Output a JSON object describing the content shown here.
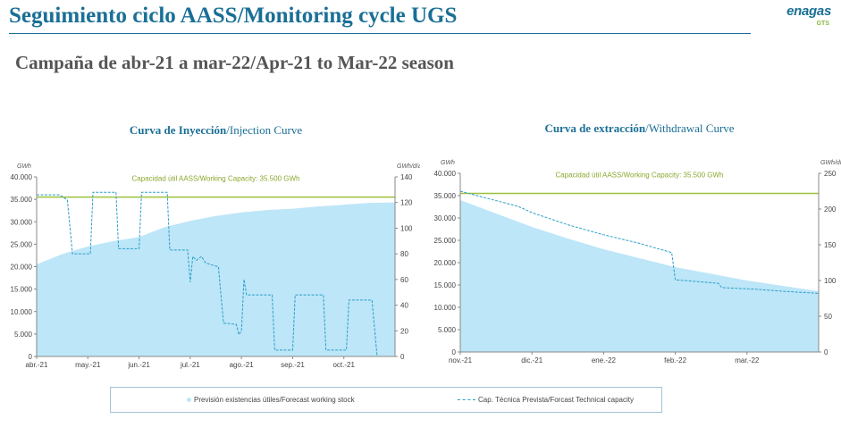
{
  "header": {
    "title": "Seguimiento ciclo AASS/Monitoring cycle UGS",
    "subtitle": "Campaña de abr-21 a mar-22/Apr-21 to Mar-22 season",
    "logo_text": "enagas",
    "logo_sub": "GTS"
  },
  "colors": {
    "title": "#1a6f96",
    "fill": "#bde6f8",
    "line": "#2a9fc9",
    "capacity": "#9dc13b"
  },
  "legend": {
    "stock": "Previsión existencias útiles/Forecast working stock",
    "capacity": "Cap. Técnica Prevista/Forcast Technical capacity"
  },
  "chart_data": [
    {
      "type": "area",
      "title_bold": "Curva de Inyección",
      "title_rest": "/Injection Curve",
      "ylabel_left": "GWh",
      "ylabel_right": "GWh/día",
      "working_capacity_label": "Capacidad útil AASS/Working Capacity: 35.500 GWh",
      "working_capacity": 35500,
      "ylim_left": [
        0,
        40000
      ],
      "ylim_right": [
        0,
        140
      ],
      "yticks_left": [
        "0",
        "5.000",
        "10.000",
        "15.000",
        "20.000",
        "25.000",
        "30.000",
        "35.000",
        "40.000"
      ],
      "yticks_right": [
        "0",
        "20",
        "40",
        "60",
        "80",
        "100",
        "120",
        "140"
      ],
      "xlim": [
        0,
        7
      ],
      "xticks": [
        "abr.-21",
        "may.-21",
        "jun.-21",
        "jul.-21",
        "ago.-21",
        "sep.-21",
        "oct.-21"
      ],
      "series": [
        {
          "name": "Previsión existencias útiles/Forecast working stock",
          "axis": "left",
          "kind": "area",
          "points": [
            [
              0,
              20500
            ],
            [
              0.5,
              22800
            ],
            [
              1,
              24500
            ],
            [
              1.5,
              25700
            ],
            [
              2,
              26600
            ],
            [
              2.5,
              28800
            ],
            [
              3,
              30200
            ],
            [
              3.5,
              31300
            ],
            [
              4,
              32100
            ],
            [
              4.5,
              32600
            ],
            [
              5,
              32900
            ],
            [
              5.5,
              33400
            ],
            [
              6,
              33800
            ],
            [
              6.5,
              34200
            ],
            [
              7,
              34300
            ]
          ]
        },
        {
          "name": "Cap. Técnica Prevista/Forcast Technical capacity",
          "axis": "right",
          "kind": "line",
          "points": [
            [
              0,
              126
            ],
            [
              0.45,
              126
            ],
            [
              0.6,
              122
            ],
            [
              0.7,
              80
            ],
            [
              1.05,
              80
            ],
            [
              1.1,
              128
            ],
            [
              1.55,
              128
            ],
            [
              1.6,
              84
            ],
            [
              2.0,
              84
            ],
            [
              2.05,
              128
            ],
            [
              2.55,
              128
            ],
            [
              2.6,
              83
            ],
            [
              2.95,
              83
            ],
            [
              3.0,
              58
            ],
            [
              3.05,
              78
            ],
            [
              3.12,
              75
            ],
            [
              3.22,
              78
            ],
            [
              3.3,
              73
            ],
            [
              3.45,
              71
            ],
            [
              3.55,
              70
            ],
            [
              3.65,
              26
            ],
            [
              3.9,
              25
            ],
            [
              3.95,
              17
            ],
            [
              4.0,
              20
            ],
            [
              4.05,
              60
            ],
            [
              4.1,
              48
            ],
            [
              4.6,
              48
            ],
            [
              4.65,
              5
            ],
            [
              5.0,
              5
            ],
            [
              5.05,
              48
            ],
            [
              5.6,
              48
            ],
            [
              5.65,
              5
            ],
            [
              6.05,
              5
            ],
            [
              6.1,
              44
            ],
            [
              6.55,
              44
            ],
            [
              6.65,
              0
            ]
          ]
        }
      ]
    },
    {
      "type": "area",
      "title_bold": "Curva de extracción",
      "title_rest": "/Withdrawal Curve",
      "ylabel_left": "GWh",
      "ylabel_right": "GWh/día",
      "working_capacity_label": "Capacidad útil AASS/Working Capacity: 35.500 GWh",
      "working_capacity": 35500,
      "ylim_left": [
        0,
        40000
      ],
      "ylim_right": [
        0,
        250
      ],
      "yticks_left": [
        "0",
        "5.000",
        "10.000",
        "15.000",
        "20.000",
        "25.000",
        "30.000",
        "35.000",
        "40.000"
      ],
      "yticks_right": [
        "0",
        "50",
        "100",
        "150",
        "200",
        "250"
      ],
      "xlim": [
        0,
        5
      ],
      "xticks": [
        "nov.-21",
        "dic.-21",
        "ene.-22",
        "feb.-22",
        "mar.-22"
      ],
      "series": [
        {
          "name": "Previsión existencias útiles/Forecast working stock",
          "axis": "left",
          "kind": "area",
          "points": [
            [
              0,
              34000
            ],
            [
              0.5,
              31000
            ],
            [
              1,
              28000
            ],
            [
              1.5,
              25400
            ],
            [
              2,
              23000
            ],
            [
              2.5,
              21000
            ],
            [
              3,
              19000
            ],
            [
              3.5,
              17500
            ],
            [
              4,
              16000
            ],
            [
              4.5,
              14800
            ],
            [
              5,
              13600
            ]
          ]
        },
        {
          "name": "Cap. Técnica Prevista/Forcast Technical capacity",
          "axis": "right",
          "kind": "line",
          "points": [
            [
              0,
              225
            ],
            [
              0.3,
              217
            ],
            [
              0.8,
              204
            ],
            [
              1,
              195
            ],
            [
              1.5,
              178
            ],
            [
              2,
              164
            ],
            [
              2.5,
              152
            ],
            [
              2.95,
              139
            ],
            [
              3.0,
              101
            ],
            [
              3.5,
              97
            ],
            [
              3.6,
              96
            ],
            [
              3.65,
              90
            ],
            [
              4.1,
              88
            ],
            [
              4.5,
              85
            ],
            [
              5,
              82
            ]
          ]
        }
      ]
    }
  ]
}
